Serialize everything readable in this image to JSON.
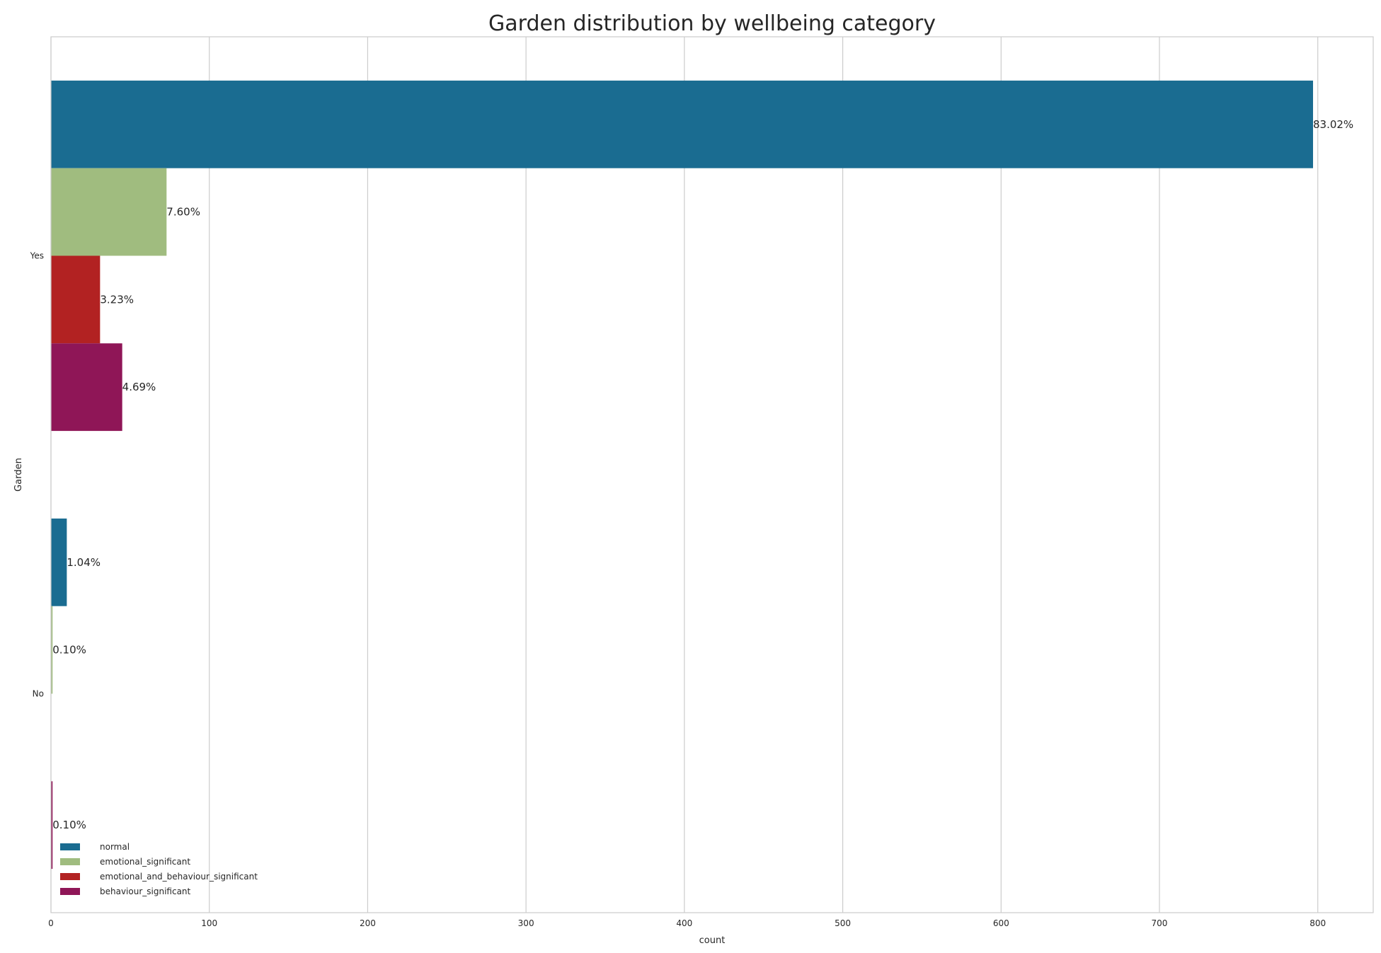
{
  "chart_data": {
    "type": "bar",
    "orientation": "horizontal",
    "title": "Garden distribution by wellbeing category",
    "xlabel": "count",
    "ylabel": "Garden",
    "categories": [
      "Yes",
      "No"
    ],
    "xlim": [
      0,
      835
    ],
    "xticks": [
      0,
      100,
      200,
      300,
      400,
      500,
      600,
      700,
      800
    ],
    "grid": true,
    "legend_position": "bottom-left",
    "series": [
      {
        "name": "normal",
        "color": "#1a6c91",
        "values": [
          797,
          10
        ],
        "labels": [
          "83.02%",
          "1.04%"
        ]
      },
      {
        "name": "emotional_significant",
        "color": "#a0bc7f",
        "values": [
          73,
          1
        ],
        "labels": [
          "7.60%",
          "0.10%"
        ]
      },
      {
        "name": "emotional_and_behaviour_significant",
        "color": "#b22222",
        "values": [
          31,
          0
        ],
        "labels": [
          "3.23%",
          ""
        ]
      },
      {
        "name": "behaviour_significant",
        "color": "#8f1657",
        "values": [
          45,
          1
        ],
        "labels": [
          "4.69%",
          "0.10%"
        ]
      }
    ]
  }
}
